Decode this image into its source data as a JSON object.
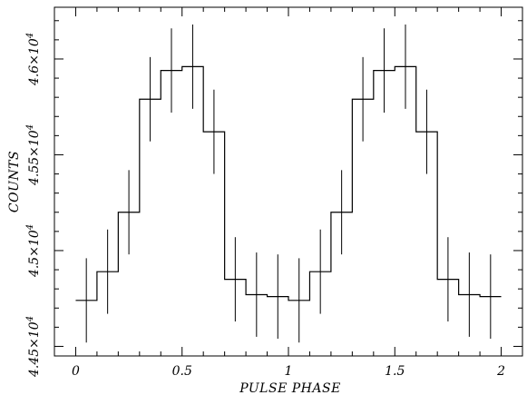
{
  "chart_data": {
    "type": "line",
    "style": "step-histogram-with-error-bars",
    "title": "",
    "xlabel": "PULSE PHASE",
    "ylabel": "COUNTS",
    "xlim": [
      -0.1,
      2.1
    ],
    "ylim": [
      44450,
      46270
    ],
    "x_ticks": [
      0,
      0.5,
      1,
      1.5,
      2
    ],
    "x_tick_labels": [
      "0",
      "0.5",
      "1",
      "1.5",
      "2"
    ],
    "y_ticks": [
      44500,
      45000,
      45500,
      46000
    ],
    "y_tick_labels": [
      {
        "mantissa": "4.45",
        "exponent": "4"
      },
      {
        "mantissa": "4.5",
        "exponent": "4"
      },
      {
        "mantissa": "4.55",
        "exponent": "4"
      },
      {
        "mantissa": "4.6",
        "exponent": "4"
      }
    ],
    "grid": false,
    "bin_width": 0.1,
    "series": [
      {
        "x": [
          0.05,
          0.15,
          0.25,
          0.35,
          0.45,
          0.55,
          0.65,
          0.75,
          0.85,
          0.95,
          1.05,
          1.15,
          1.25,
          1.35,
          1.45,
          1.55,
          1.65,
          1.75,
          1.85,
          1.95
        ],
        "y": [
          44740,
          44890,
          45200,
          45790,
          45940,
          45960,
          45620,
          44850,
          44770,
          44760,
          44740,
          44890,
          45200,
          45790,
          45940,
          45960,
          45620,
          44850,
          44770,
          44760
        ],
        "err": [
          220,
          220,
          220,
          220,
          220,
          220,
          220,
          220,
          220,
          220,
          220,
          220,
          220,
          220,
          220,
          220,
          220,
          220,
          220,
          220
        ]
      }
    ]
  }
}
